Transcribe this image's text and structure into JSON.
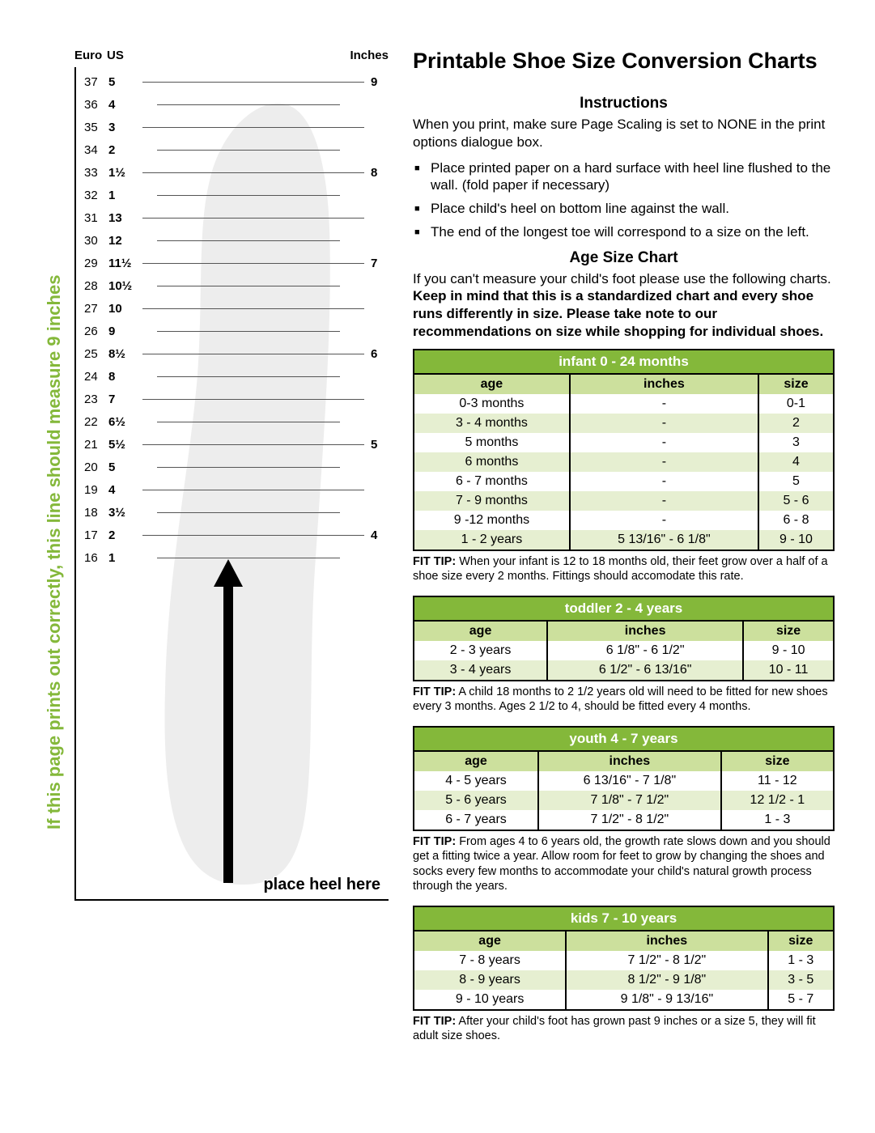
{
  "title": "Printable Shoe Size Conversion Charts",
  "vertical_label": "If this page prints out correctly, this line should measure 9 inches",
  "ruler": {
    "headers": {
      "euro": "Euro",
      "us": "US",
      "inches": "Inches"
    },
    "rows": [
      {
        "euro": "37",
        "us": "5",
        "long": true,
        "inch": "9"
      },
      {
        "euro": "36",
        "us": "4",
        "long": false,
        "inch": ""
      },
      {
        "euro": "35",
        "us": "3",
        "long": true,
        "inch": ""
      },
      {
        "euro": "34",
        "us": "2",
        "long": false,
        "inch": ""
      },
      {
        "euro": "33",
        "us": "1½",
        "long": true,
        "inch": "8"
      },
      {
        "euro": "32",
        "us": "1",
        "long": false,
        "inch": ""
      },
      {
        "euro": "31",
        "us": "13",
        "long": true,
        "inch": ""
      },
      {
        "euro": "30",
        "us": "12",
        "long": false,
        "inch": ""
      },
      {
        "euro": "29",
        "us": "11½",
        "long": true,
        "inch": "7"
      },
      {
        "euro": "28",
        "us": "10½",
        "long": false,
        "inch": ""
      },
      {
        "euro": "27",
        "us": "10",
        "long": true,
        "inch": ""
      },
      {
        "euro": "26",
        "us": "9",
        "long": false,
        "inch": ""
      },
      {
        "euro": "25",
        "us": "8½",
        "long": true,
        "inch": "6"
      },
      {
        "euro": "24",
        "us": "8",
        "long": false,
        "inch": ""
      },
      {
        "euro": "23",
        "us": "7",
        "long": true,
        "inch": ""
      },
      {
        "euro": "22",
        "us": "6½",
        "long": false,
        "inch": ""
      },
      {
        "euro": "21",
        "us": "5½",
        "long": true,
        "inch": "5"
      },
      {
        "euro": "20",
        "us": "5",
        "long": false,
        "inch": ""
      },
      {
        "euro": "19",
        "us": "4",
        "long": true,
        "inch": ""
      },
      {
        "euro": "18",
        "us": "3½",
        "long": false,
        "inch": ""
      },
      {
        "euro": "17",
        "us": "2",
        "long": true,
        "inch": "4"
      },
      {
        "euro": "16",
        "us": "1",
        "long": false,
        "inch": ""
      }
    ],
    "place_heel": "place heel here"
  },
  "instructions": {
    "heading": "Instructions",
    "intro": "When you print, make sure Page Scaling is set to NONE in the print options dialogue box.",
    "bullets": [
      "Place printed paper on a hard surface with heel line flushed to the wall. (fold paper if necessary)",
      "Place child's heel on bottom line against the wall.",
      "The end of the longest toe will correspond to a size on the left."
    ]
  },
  "age_chart": {
    "heading": "Age Size Chart",
    "intro_pre": "If you can't measure your child's foot please use the following charts. ",
    "intro_bold": "Keep in mind that this is a standardized chart and every shoe runs differently in size. Please take note to our recommendations on size while shopping for individual shoes."
  },
  "tables": [
    {
      "caption": "infant 0 - 24 months",
      "headers": [
        "age",
        "inches",
        "size"
      ],
      "rows": [
        [
          "0-3 months",
          "-",
          "0-1"
        ],
        [
          "3 - 4 months",
          "-",
          "2"
        ],
        [
          "5 months",
          "-",
          "3"
        ],
        [
          "6 months",
          "-",
          "4"
        ],
        [
          "6 - 7 months",
          "-",
          "5"
        ],
        [
          "7 - 9 months",
          "-",
          "5 - 6"
        ],
        [
          "9 -12 months",
          "-",
          "6 - 8"
        ],
        [
          "1 - 2 years",
          "5 13/16\" - 6 1/8\"",
          "9 - 10"
        ]
      ],
      "fit_tip": "When your infant is 12 to 18 months old, their feet grow over a half of a shoe size every 2 months. Fittings should accomodate this rate."
    },
    {
      "caption": "toddler 2 - 4 years",
      "headers": [
        "age",
        "inches",
        "size"
      ],
      "rows": [
        [
          "2 - 3 years",
          "6 1/8\" - 6 1/2\"",
          "9 - 10"
        ],
        [
          "3 - 4 years",
          "6 1/2\" - 6 13/16\"",
          "10 - 11"
        ]
      ],
      "fit_tip": "A child 18 months to 2 1/2 years old will need to be fitted for new shoes every 3 months.  Ages 2 1/2 to 4, should be fitted every 4 months."
    },
    {
      "caption": "youth 4 - 7 years",
      "headers": [
        "age",
        "inches",
        "size"
      ],
      "rows": [
        [
          "4 - 5 years",
          "6 13/16\" - 7 1/8\"",
          "11 - 12"
        ],
        [
          "5 - 6 years",
          "7 1/8\" - 7 1/2\"",
          "12 1/2 - 1"
        ],
        [
          "6 - 7 years",
          "7 1/2\" - 8 1/2\"",
          "1 - 3"
        ]
      ],
      "fit_tip": "From ages 4 to 6 years old, the growth rate slows down and you should get a fitting twice a year. Allow room for feet to grow by changing the shoes and socks every few months to accommodate your child's natural growth process through the years."
    },
    {
      "caption": "kids 7 - 10 years",
      "headers": [
        "age",
        "inches",
        "size"
      ],
      "rows": [
        [
          "7 - 8 years",
          "7 1/2\" - 8 1/2\"",
          "1 - 3"
        ],
        [
          "8 - 9 years",
          "8 1/2\" - 9 1/8\"",
          "3 - 5"
        ],
        [
          "9 - 10 years",
          "9 1/8\" - 9 13/16\"",
          "5 - 7"
        ]
      ],
      "fit_tip": "After your child's foot has grown past 9 inches or a size 5, they will fit adult size shoes."
    }
  ],
  "colors": {
    "green": "#84b83a",
    "green_light": "#cce09d",
    "green_pale": "#e6efd1",
    "foot_fill": "#e9e9e9"
  }
}
